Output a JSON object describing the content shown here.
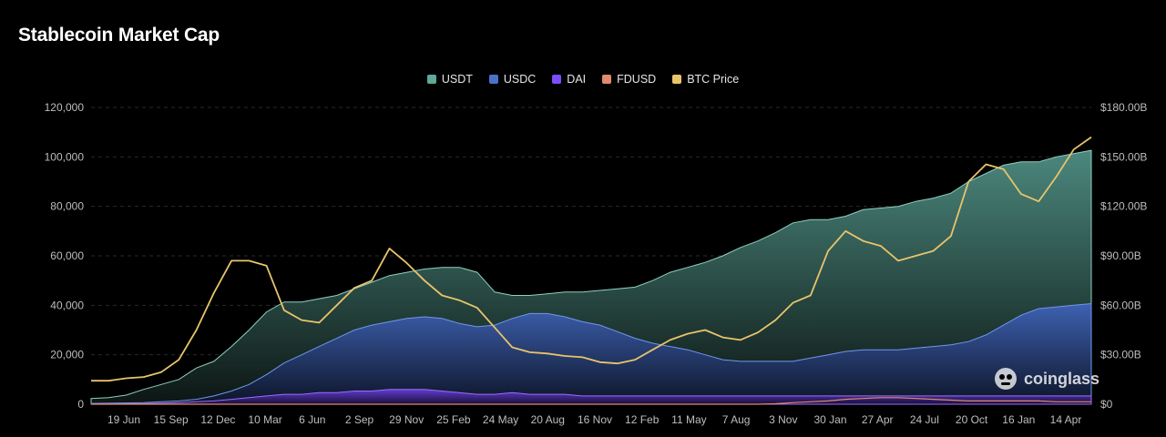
{
  "header": {
    "title": "Stablecoin Market Cap"
  },
  "legend": [
    {
      "label": "USDT",
      "color": "#5fa89a"
    },
    {
      "label": "USDC",
      "color": "#4a72c8"
    },
    {
      "label": "DAI",
      "color": "#7c4dff"
    },
    {
      "label": "FDUSD",
      "color": "#e08a6e"
    },
    {
      "label": "BTC Price",
      "color": "#e9c46a"
    }
  ],
  "watermark": {
    "text": "coinglass",
    "icon": "coinglass-logo-icon"
  },
  "chart_data": {
    "type": "area",
    "title": "Stablecoin Market Cap",
    "x_ticks": [
      "19 Jun",
      "15 Sep",
      "12 Dec",
      "10 Mar",
      "6 Jun",
      "2 Sep",
      "29 Nov",
      "25 Feb",
      "24 May",
      "20 Aug",
      "16 Nov",
      "12 Feb",
      "11 May",
      "7 Aug",
      "3 Nov",
      "30 Jan",
      "27 Apr",
      "24 Jul",
      "20 Oct",
      "16 Jan",
      "14 Apr"
    ],
    "y_left_ticks": [
      "0",
      "20,000",
      "40,000",
      "60,000",
      "80,000",
      "100,000",
      "120,000"
    ],
    "y_left_range": [
      0,
      120000
    ],
    "y_right_ticks": [
      "$0",
      "$30.00B",
      "$60.00B",
      "$90.00B",
      "$120.00B",
      "$150.00B",
      "$180.00B"
    ],
    "y_right_range": [
      0,
      180
    ],
    "grid": "horizontal-dashed",
    "legend_position": "top-center",
    "series": [
      {
        "name": "USDT",
        "axis": "right",
        "unit": "B",
        "values": [
          3.5,
          4,
          5.5,
          9,
          12,
          15,
          22,
          26,
          35,
          45,
          56,
          62,
          62,
          64,
          66,
          70,
          74,
          78,
          80,
          82,
          83,
          83,
          80,
          68,
          66,
          66,
          67,
          68,
          68,
          69,
          70,
          71,
          75,
          80,
          83,
          86,
          90,
          95,
          99,
          104,
          110,
          112,
          112,
          114,
          118,
          119,
          120,
          123,
          125,
          128,
          135,
          140,
          145,
          147,
          147,
          150,
          152,
          154
        ]
      },
      {
        "name": "USDC",
        "axis": "right",
        "unit": "B",
        "values": [
          0.5,
          0.6,
          0.8,
          1,
          1.5,
          2,
          3,
          5,
          8,
          12,
          18,
          25,
          30,
          35,
          40,
          45,
          48,
          50,
          52,
          53,
          52,
          49,
          47,
          48,
          52,
          55,
          55,
          53,
          50,
          48,
          44,
          40,
          37,
          35,
          33,
          30,
          27,
          26,
          26,
          26,
          26,
          28,
          30,
          32,
          33,
          33,
          33,
          34,
          35,
          36,
          38,
          42,
          48,
          54,
          58,
          59,
          60,
          61
        ]
      },
      {
        "name": "DAI",
        "axis": "right",
        "unit": "B",
        "values": [
          0.2,
          0.2,
          0.3,
          0.4,
          0.6,
          1,
          1.5,
          2,
          3,
          4,
          5,
          6,
          6,
          7,
          7,
          8,
          8,
          9,
          9,
          9,
          8,
          7,
          6,
          6,
          7,
          6,
          6,
          6,
          5,
          5,
          5,
          5,
          5,
          5,
          5,
          5,
          5,
          5,
          5,
          5,
          5,
          5,
          5,
          5,
          5,
          5,
          5,
          5,
          5,
          5,
          5,
          5,
          5,
          5,
          5,
          5,
          5,
          5
        ]
      },
      {
        "name": "FDUSD",
        "axis": "right",
        "unit": "B",
        "values": [
          0,
          0,
          0,
          0,
          0,
          0,
          0,
          0,
          0,
          0,
          0,
          0,
          0,
          0,
          0,
          0,
          0,
          0,
          0,
          0,
          0,
          0,
          0,
          0,
          0,
          0,
          0,
          0,
          0,
          0,
          0,
          0,
          0,
          0,
          0,
          0,
          0,
          0,
          0,
          0.3,
          1,
          1.5,
          2,
          3,
          3.5,
          4,
          4,
          3.5,
          3,
          2.5,
          2,
          2,
          2,
          2,
          2,
          1.5,
          1.5,
          1.5
        ]
      },
      {
        "name": "BTC Price",
        "axis": "left",
        "values": [
          9500,
          9500,
          10500,
          11000,
          13000,
          18000,
          30000,
          45000,
          58000,
          58000,
          56000,
          38000,
          34000,
          33000,
          40000,
          47000,
          50000,
          63000,
          57000,
          50000,
          44000,
          42000,
          39000,
          31000,
          23000,
          21000,
          20500,
          19500,
          19000,
          17000,
          16500,
          18000,
          22000,
          26000,
          28500,
          30000,
          27000,
          26000,
          29000,
          34000,
          41000,
          44000,
          62000,
          70000,
          66000,
          64000,
          58000,
          60000,
          62000,
          68000,
          90000,
          97000,
          95000,
          85000,
          82000,
          92000,
          103000,
          108000
        ]
      }
    ]
  }
}
